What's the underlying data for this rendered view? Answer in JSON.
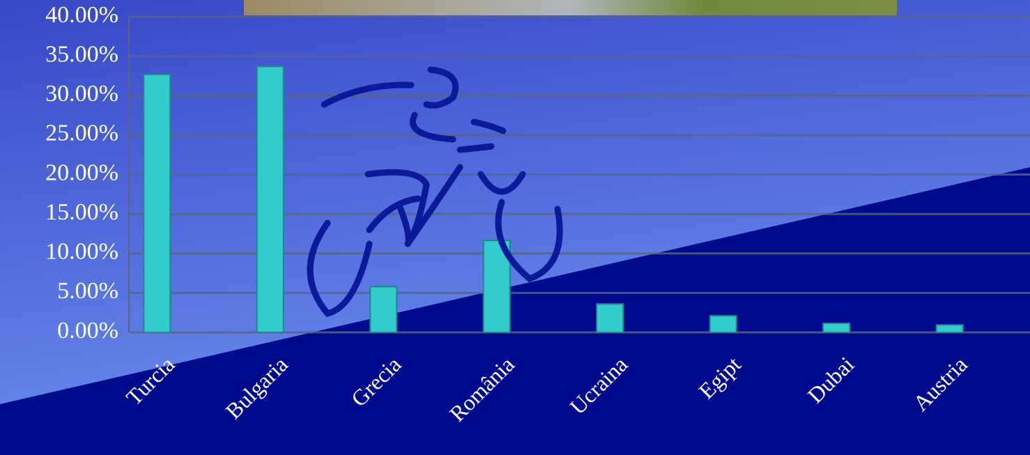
{
  "chart_data": {
    "type": "bar",
    "categories": [
      "Turcia",
      "Bulgaria",
      "Grecia",
      "România",
      "Ucraina",
      "Egipt",
      "Dubai",
      "Austria"
    ],
    "values": [
      32.7,
      33.7,
      5.8,
      11.65,
      3.6,
      2.1,
      1.15,
      0.95
    ],
    "color": "#33cccc",
    "ylim": [
      0,
      40
    ],
    "yticks": [
      {
        "value": 0,
        "label": "0.00%"
      },
      {
        "value": 5,
        "label": "5.00%"
      },
      {
        "value": 10,
        "label": "10.00%"
      },
      {
        "value": 15,
        "label": "15.00%"
      },
      {
        "value": 20,
        "label": "20.00%"
      },
      {
        "value": 25,
        "label": "25.00%"
      },
      {
        "value": 30,
        "label": "30.00%"
      },
      {
        "value": 35,
        "label": "35.00%"
      },
      {
        "value": 40,
        "label": "40.00%"
      }
    ],
    "grid": true
  }
}
